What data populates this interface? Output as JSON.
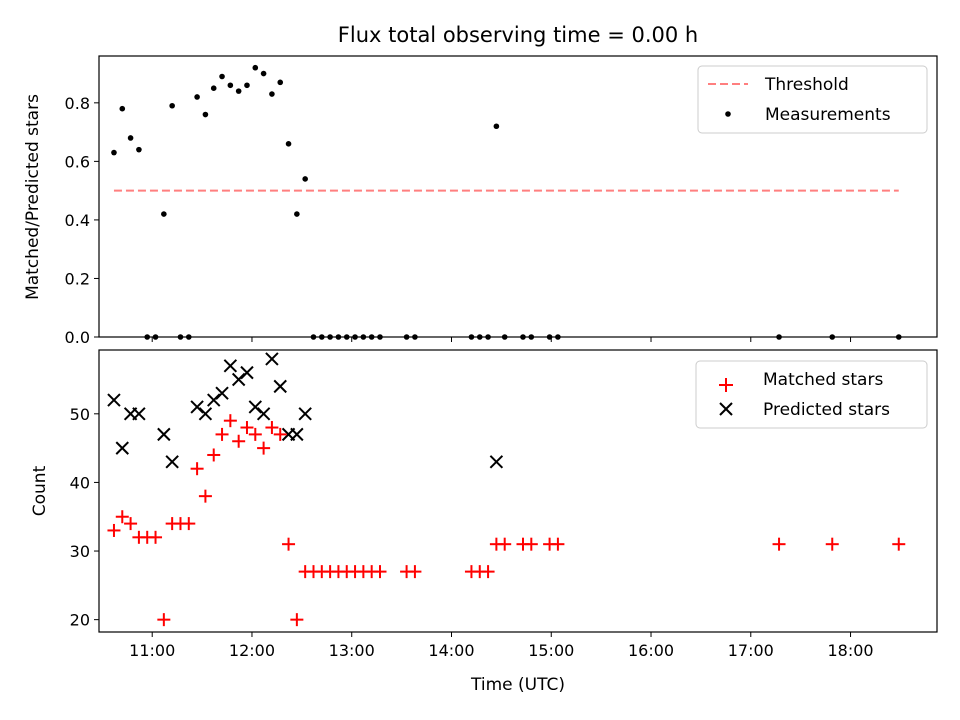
{
  "chart_data": [
    {
      "type": "scatter",
      "title": "Flux total observing time = 0.00 h",
      "xlabel": "",
      "ylabel": "Matched/Predicted stars",
      "xlim": [
        "10:28",
        "18:52"
      ],
      "ylim": [
        0.0,
        0.96
      ],
      "yticks": [
        0.0,
        0.2,
        0.4,
        0.6,
        0.8
      ],
      "legend_position": "top-right",
      "colors": {
        "threshold": "#ff7f7f",
        "measurements": "#000000"
      },
      "series": [
        {
          "name": "Threshold",
          "kind": "dashed-line",
          "x": [
            "10:37",
            "18:29"
          ],
          "y": [
            0.5,
            0.5
          ]
        },
        {
          "name": "Measurements",
          "kind": "points",
          "x": [
            "10:37",
            "10:42",
            "10:47",
            "10:52",
            "10:57",
            "11:02",
            "11:07",
            "11:12",
            "11:17",
            "11:22",
            "11:27",
            "11:32",
            "11:37",
            "11:42",
            "11:47",
            "11:52",
            "11:57",
            "12:02",
            "12:07",
            "12:12",
            "12:17",
            "12:22",
            "12:27",
            "12:32",
            "12:37",
            "12:42",
            "12:47",
            "12:52",
            "12:57",
            "13:02",
            "13:07",
            "13:12",
            "13:17",
            "13:33",
            "13:38",
            "14:12",
            "14:17",
            "14:22",
            "14:27",
            "14:32",
            "14:43",
            "14:48",
            "14:59",
            "15:04",
            "17:17",
            "17:49",
            "18:29"
          ],
          "y": [
            0.63,
            0.78,
            0.68,
            0.64,
            0.0,
            0.0,
            0.42,
            0.79,
            0.0,
            0.0,
            0.82,
            0.76,
            0.85,
            0.89,
            0.86,
            0.84,
            0.86,
            0.92,
            0.9,
            0.83,
            0.87,
            0.66,
            0.42,
            0.54,
            0.0,
            0.0,
            0.0,
            0.0,
            0.0,
            0.0,
            0.0,
            0.0,
            0.0,
            0.0,
            0.0,
            0.0,
            0.0,
            0.0,
            0.72,
            0.0,
            0.0,
            0.0,
            0.0,
            0.0,
            0.0,
            0.0,
            0.0
          ]
        }
      ]
    },
    {
      "type": "scatter",
      "title": "",
      "xlabel": "Time (UTC)",
      "ylabel": "Count",
      "xlim": [
        "10:28",
        "18:52"
      ],
      "xticks": [
        "11:00",
        "12:00",
        "13:00",
        "14:00",
        "15:00",
        "16:00",
        "17:00",
        "18:00"
      ],
      "ylim": [
        18.2,
        59.3
      ],
      "yticks": [
        20,
        30,
        40,
        50
      ],
      "legend_position": "top-right",
      "colors": {
        "matched": "#ff0000",
        "predicted": "#000000"
      },
      "series": [
        {
          "name": "Matched stars",
          "marker": "plus",
          "x": [
            "10:37",
            "10:42",
            "10:47",
            "10:52",
            "10:57",
            "11:02",
            "11:07",
            "11:12",
            "11:17",
            "11:22",
            "11:27",
            "11:32",
            "11:37",
            "11:42",
            "11:47",
            "11:52",
            "11:57",
            "12:02",
            "12:07",
            "12:12",
            "12:17",
            "12:22",
            "12:27",
            "12:32",
            "12:37",
            "12:42",
            "12:47",
            "12:52",
            "12:57",
            "13:02",
            "13:07",
            "13:12",
            "13:17",
            "13:33",
            "13:38",
            "14:12",
            "14:17",
            "14:22",
            "14:27",
            "14:32",
            "14:43",
            "14:48",
            "14:59",
            "15:04",
            "17:17",
            "17:49",
            "18:29"
          ],
          "y": [
            33,
            35,
            34,
            32,
            32,
            32,
            20,
            34,
            34,
            34,
            42,
            38,
            44,
            47,
            49,
            46,
            48,
            47,
            45,
            48,
            47,
            31,
            20,
            27,
            27,
            27,
            27,
            27,
            27,
            27,
            27,
            27,
            27,
            27,
            27,
            27,
            27,
            27,
            31,
            31,
            31,
            31,
            31,
            31,
            31,
            31,
            31
          ]
        },
        {
          "name": "Predicted stars",
          "marker": "x",
          "x": [
            "10:37",
            "10:42",
            "10:47",
            "10:52",
            "11:07",
            "11:12",
            "11:27",
            "11:32",
            "11:37",
            "11:42",
            "11:47",
            "11:52",
            "11:57",
            "12:02",
            "12:07",
            "12:12",
            "12:17",
            "12:22",
            "12:27",
            "12:32",
            "14:27"
          ],
          "y": [
            52,
            45,
            50,
            50,
            47,
            43,
            51,
            50,
            52,
            53,
            57,
            55,
            56,
            51,
            50,
            58,
            54,
            47,
            47,
            50,
            43
          ]
        }
      ]
    }
  ]
}
